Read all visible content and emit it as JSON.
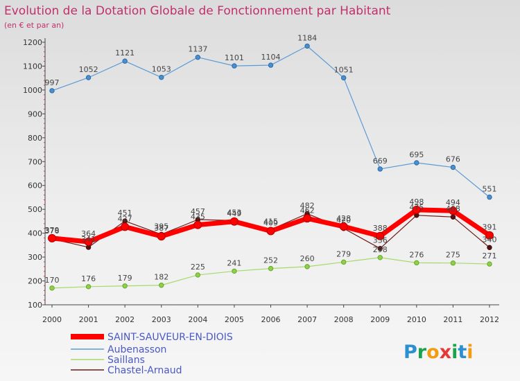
{
  "chart_data": {
    "type": "line",
    "title": "Evolution de la Dotation Globale de Fonctionnement par Habitant",
    "subtitle": "(en € et par an)",
    "xlabel": "",
    "ylabel": "",
    "ylim": [
      100,
      1200
    ],
    "yticks": [
      100,
      200,
      300,
      400,
      500,
      600,
      700,
      800,
      900,
      1000,
      1100,
      1200
    ],
    "x": [
      "2000",
      "2001",
      "2002",
      "2003",
      "2004",
      "2005",
      "2006",
      "2007",
      "2008",
      "2009",
      "2010",
      "2011",
      "2012"
    ],
    "grid": false,
    "legend": "bottom-left",
    "series": [
      {
        "name": "SAINT-SAUVEUR-EN-DIOIS",
        "color": "#ff0000",
        "values": [
          379,
          364,
          427,
          387,
          435,
          449,
          409,
          462,
          428,
          388,
          498,
          494,
          391
        ]
      },
      {
        "name": "Aubenasson",
        "color": "#5b9bd5",
        "values": [
          997,
          1052,
          1121,
          1053,
          1137,
          1101,
          1104,
          1184,
          1051,
          669,
          695,
          676,
          551
        ]
      },
      {
        "name": "Saillans",
        "color": "#a6d96a",
        "values": [
          170,
          176,
          179,
          182,
          225,
          241,
          252,
          260,
          279,
          298,
          276,
          275,
          271
        ]
      },
      {
        "name": "Chastel-Arnaud",
        "color": "#6b1a1a",
        "values": [
          376,
          341,
          451,
          395,
          457,
          453,
          415,
          482,
          420,
          336,
          475,
          468,
          340
        ]
      }
    ]
  },
  "brand": {
    "name": "Proxiti",
    "letters": [
      "P",
      "r",
      "o",
      "x",
      "i",
      "t",
      "i"
    ],
    "colors": [
      "#2b8fd0",
      "#1aa34a",
      "#f39c12",
      "#e53935",
      "#1aa34a",
      "#2b8fd0",
      "#f39c12"
    ]
  }
}
